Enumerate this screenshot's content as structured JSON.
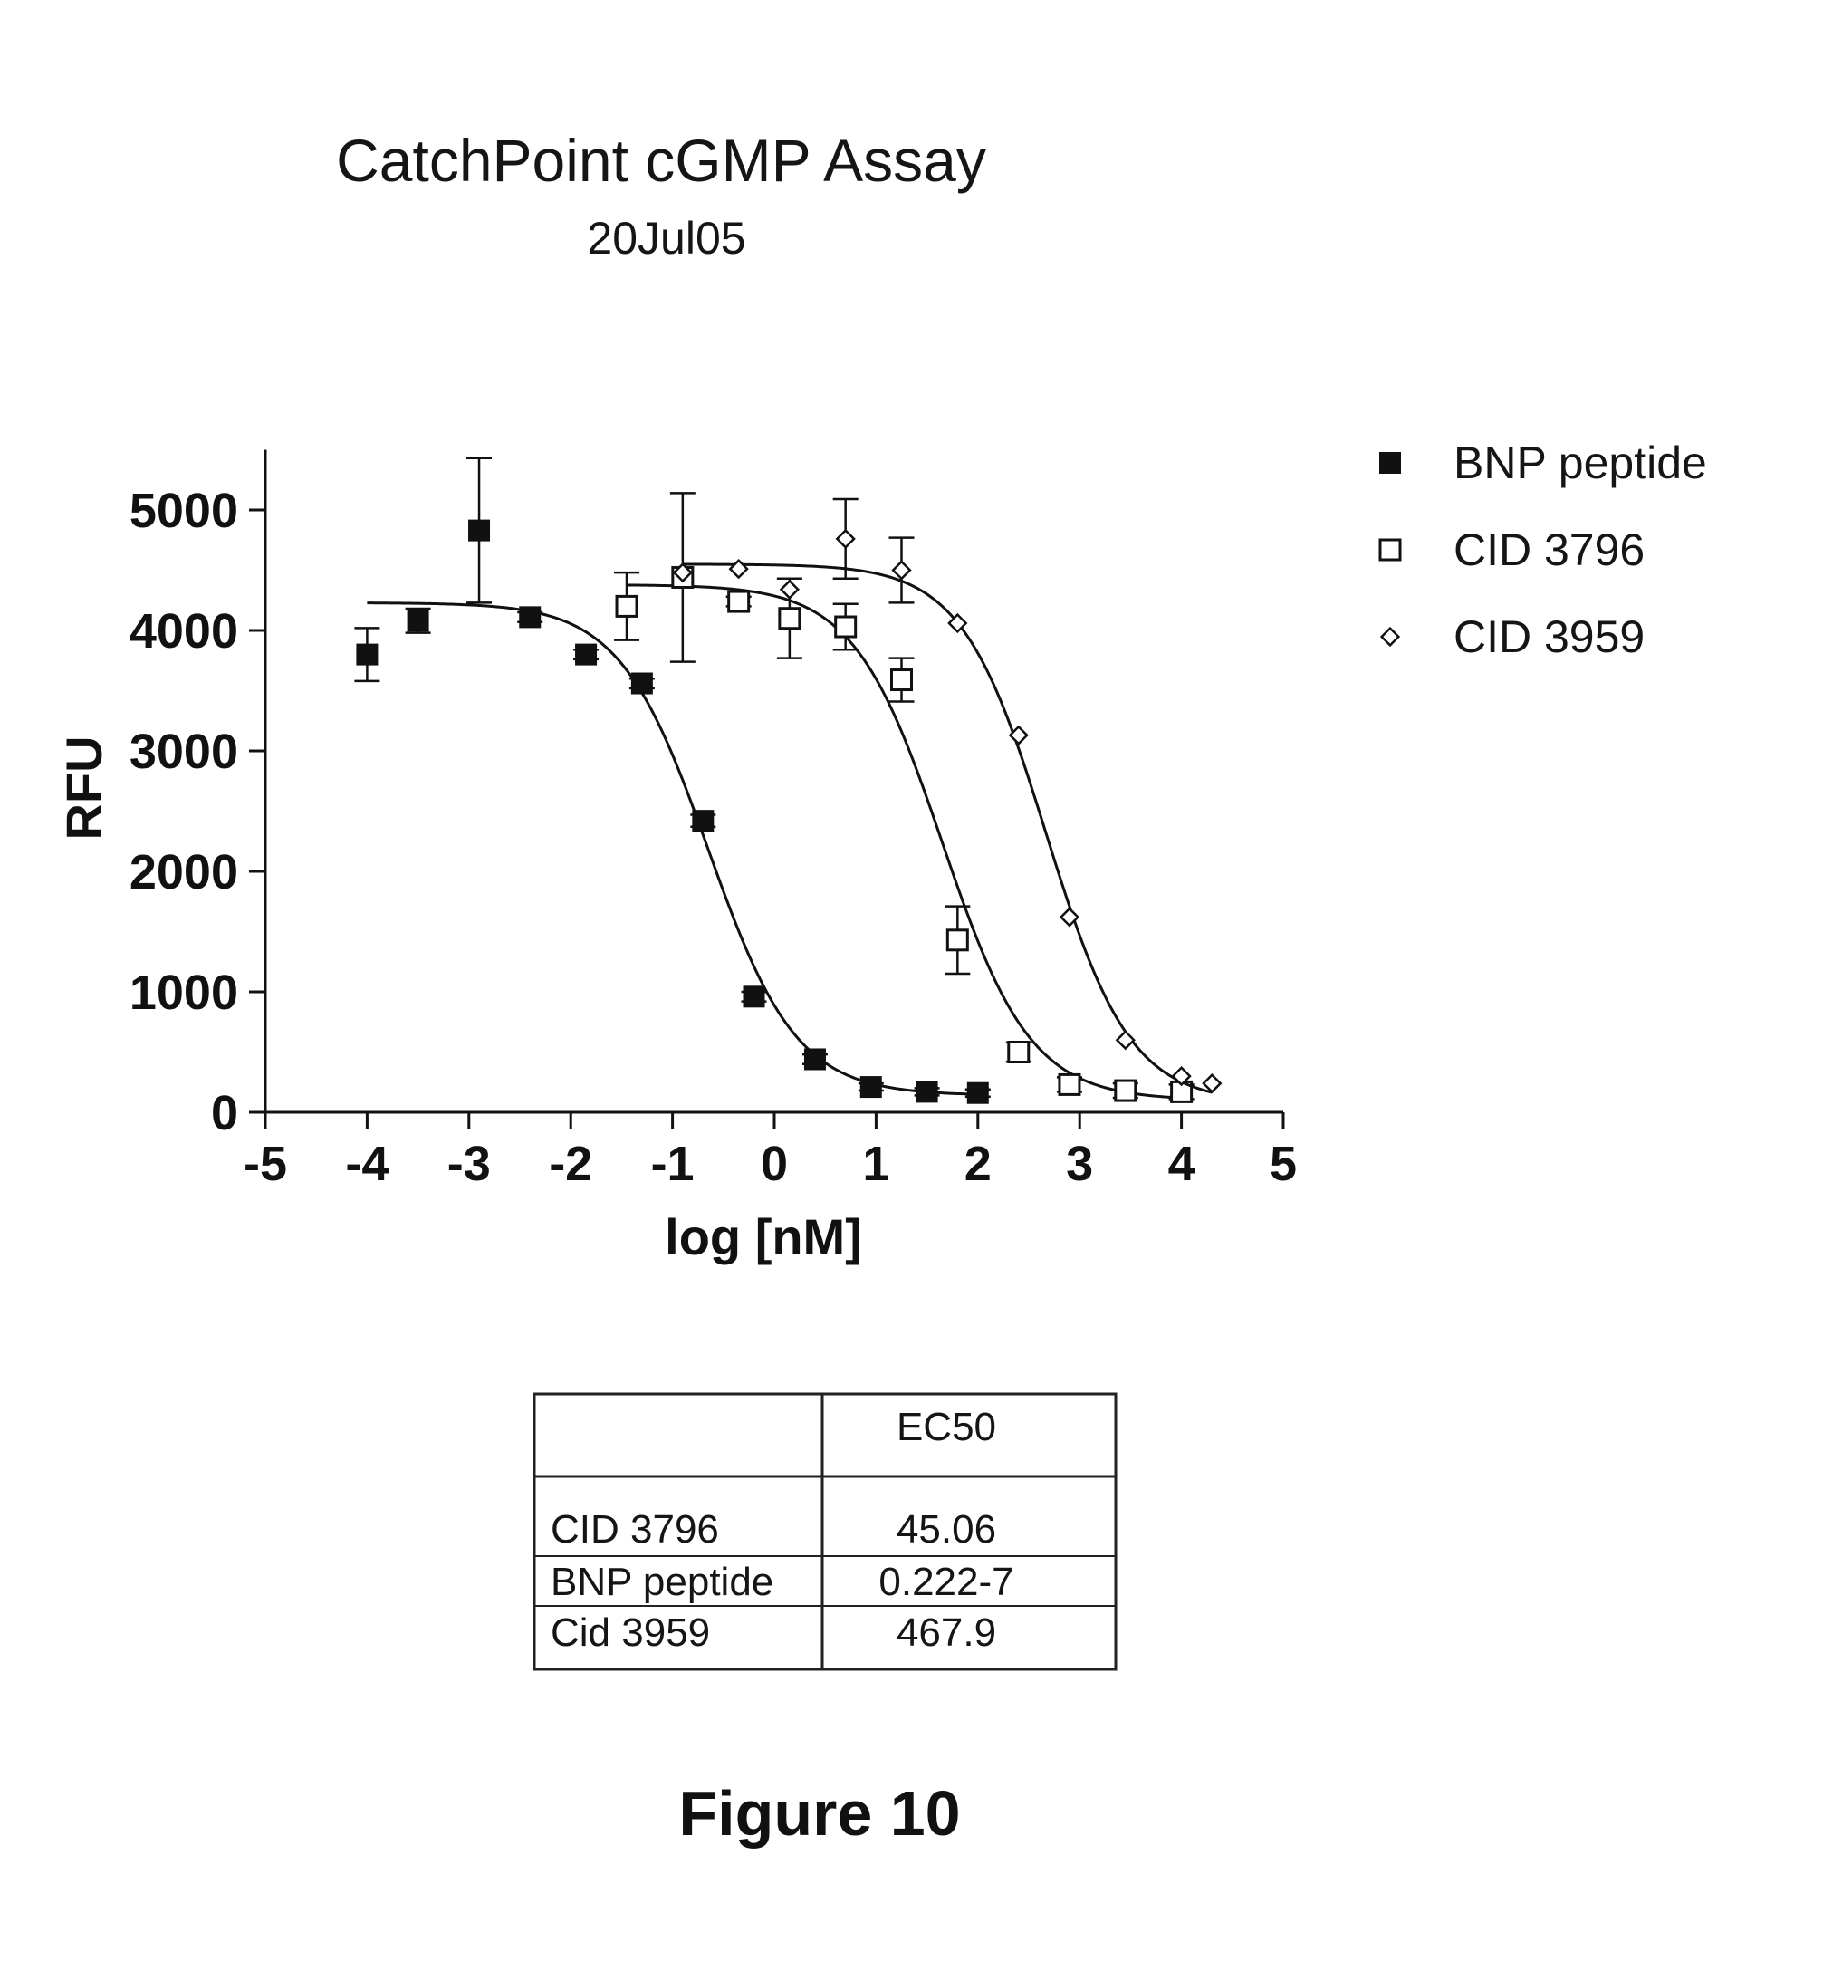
{
  "chart_data": {
    "type": "scatter",
    "title": "CatchPoint cGMP Assay",
    "subtitle": "20Jul05",
    "xlabel": "log [nM]",
    "ylabel": "RFU",
    "xlim": [
      -5,
      5
    ],
    "ylim": [
      0,
      5500
    ],
    "x_ticks": [
      "-5",
      "-4",
      "-3",
      "-2",
      "-1",
      "0",
      "1",
      "2",
      "3",
      "4",
      "5"
    ],
    "y_ticks": [
      "0",
      "1000",
      "2000",
      "3000",
      "4000",
      "5000"
    ],
    "legend_position": "top-right",
    "grid": false,
    "series": [
      {
        "name": "BNP peptide",
        "marker": "filled-square",
        "points": [
          {
            "x": -4.0,
            "y": 3800,
            "err": 220
          },
          {
            "x": -3.5,
            "y": 4080,
            "err": 100
          },
          {
            "x": -2.9,
            "y": 4830,
            "err": 600
          },
          {
            "x": -2.4,
            "y": 4110,
            "err": 40
          },
          {
            "x": -1.85,
            "y": 3800,
            "err": 40
          },
          {
            "x": -1.3,
            "y": 3560,
            "err": 40
          },
          {
            "x": -0.7,
            "y": 2420,
            "err": 50
          },
          {
            "x": -0.2,
            "y": 960,
            "err": 40
          },
          {
            "x": 0.4,
            "y": 440,
            "err": 40
          },
          {
            "x": 0.95,
            "y": 210,
            "err": 30
          },
          {
            "x": 1.5,
            "y": 170,
            "err": 30
          },
          {
            "x": 2.0,
            "y": 160,
            "err": 30
          }
        ],
        "fit": {
          "top": 4230,
          "bottom": 140,
          "log_ec50": -0.65,
          "hill": 1.0
        }
      },
      {
        "name": "CID 3796",
        "marker": "open-square",
        "points": [
          {
            "x": -1.45,
            "y": 4200,
            "err": 280
          },
          {
            "x": -0.9,
            "y": 4440,
            "err": 700
          },
          {
            "x": -0.35,
            "y": 4240,
            "err": 40
          },
          {
            "x": 0.15,
            "y": 4100,
            "err": 330
          },
          {
            "x": 0.7,
            "y": 4030,
            "err": 190
          },
          {
            "x": 1.25,
            "y": 3590,
            "err": 180
          },
          {
            "x": 1.8,
            "y": 1430,
            "err": 280
          },
          {
            "x": 2.4,
            "y": 500,
            "err": 80
          },
          {
            "x": 2.9,
            "y": 230,
            "err": 60
          },
          {
            "x": 3.45,
            "y": 180,
            "err": 60
          },
          {
            "x": 4.0,
            "y": 170,
            "err": 60
          }
        ],
        "fit": {
          "top": 4380,
          "bottom": 100,
          "log_ec50": 1.65,
          "hill": 1.0
        }
      },
      {
        "name": "CID 3959",
        "marker": "open-diamond",
        "points": [
          {
            "x": -0.9,
            "y": 4480,
            "err": 0
          },
          {
            "x": -0.35,
            "y": 4510,
            "err": 0
          },
          {
            "x": 0.15,
            "y": 4340,
            "err": 0
          },
          {
            "x": 0.7,
            "y": 4760,
            "err": 330
          },
          {
            "x": 1.25,
            "y": 4500,
            "err": 270
          },
          {
            "x": 1.8,
            "y": 4060,
            "err": 0
          },
          {
            "x": 2.4,
            "y": 3130,
            "err": 0
          },
          {
            "x": 2.9,
            "y": 1620,
            "err": 0
          },
          {
            "x": 3.45,
            "y": 600,
            "err": 0
          },
          {
            "x": 4.0,
            "y": 300,
            "err": 0
          },
          {
            "x": 4.3,
            "y": 240,
            "err": 0
          }
        ],
        "fit": {
          "top": 4550,
          "bottom": 80,
          "log_ec50": 2.67,
          "hill": 1.05
        }
      }
    ]
  },
  "ec50_table": {
    "header": [
      "",
      "EC50"
    ],
    "rows": [
      [
        "CID 3796",
        "45.06"
      ],
      [
        "BNP peptide",
        "0.222-7"
      ],
      [
        "Cid 3959",
        "467.9"
      ]
    ]
  },
  "figure_caption": "Figure 10"
}
